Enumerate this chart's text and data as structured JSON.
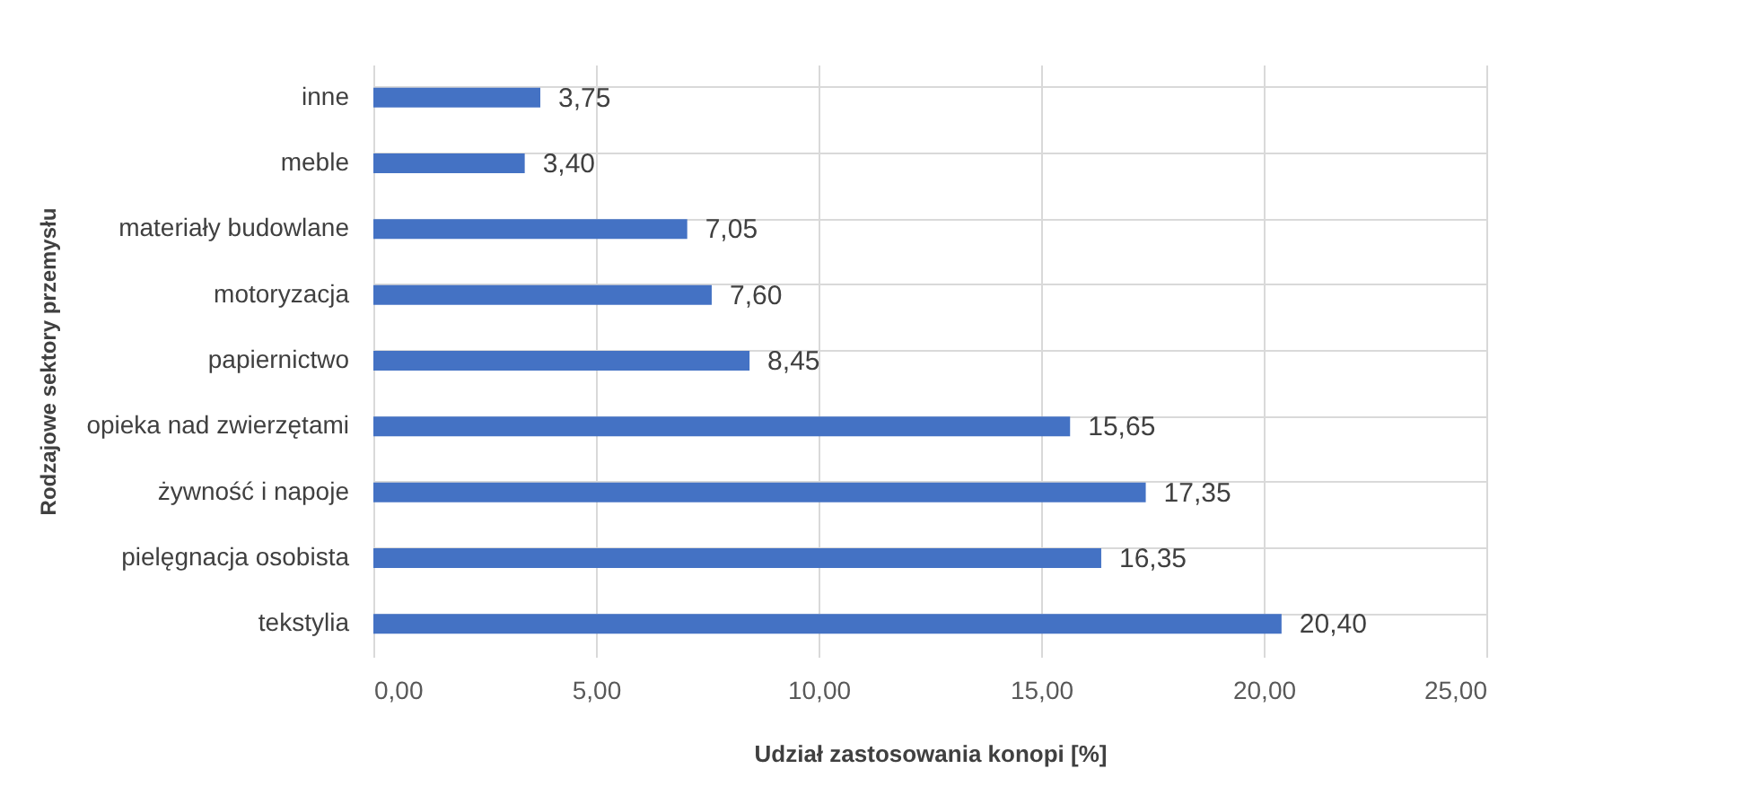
{
  "chart_data": {
    "type": "bar",
    "orientation": "horizontal",
    "xlabel": "Udział zastosowania konopi [%]",
    "ylabel": "Rodzajowe sektory przemysłu",
    "categories": [
      "inne",
      "meble",
      "materiały budowlane",
      "motoryzacja",
      "papiernictwo",
      "opieka nad zwierzętami",
      "żywność i napoje",
      "pielęgnacja osobista",
      "tekstylia"
    ],
    "values": [
      3.75,
      3.4,
      7.05,
      7.6,
      8.45,
      15.65,
      17.35,
      16.35,
      20.4
    ],
    "value_labels": [
      "3,75",
      "3,40",
      "7,05",
      "7,60",
      "8,45",
      "15,65",
      "17,35",
      "16,35",
      "20,40"
    ],
    "color": "#4472c4",
    "xlim": [
      0,
      25
    ],
    "xticks": [
      {
        "value": 0,
        "label": "0,00"
      },
      {
        "value": 5,
        "label": "5,00"
      },
      {
        "value": 10,
        "label": "10,00"
      },
      {
        "value": 15,
        "label": "15,00"
      },
      {
        "value": 20,
        "label": "20,00"
      },
      {
        "value": 25,
        "label": "25,00"
      }
    ],
    "grid": true
  }
}
